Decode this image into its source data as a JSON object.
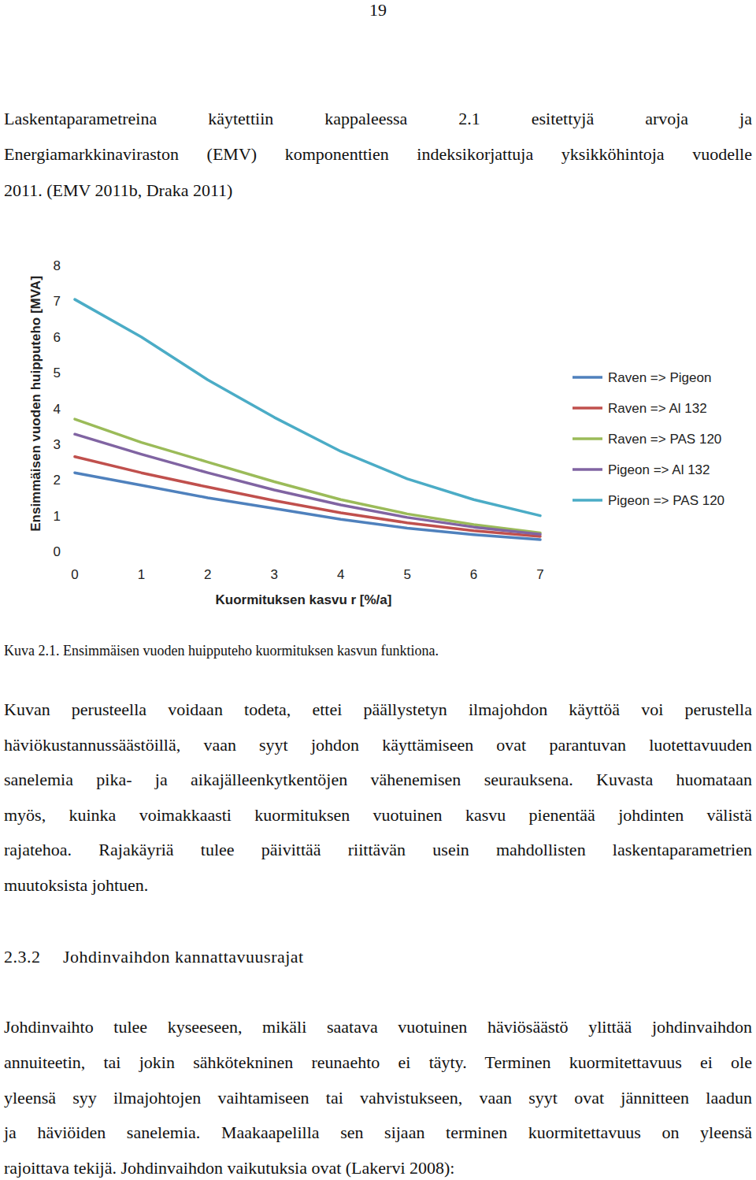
{
  "page_number": 19,
  "intro": [
    "Laskentaparametreina käytettiin kappaleessa 2.1 esitettyjä arvoja ja",
    "Energiamarkkinaviraston (EMV) komponenttien indeksikorjattuja yksikköhintoja vuodelle",
    "2011. (EMV 2011b, Draka 2011)"
  ],
  "chart_data": {
    "type": "line",
    "xlabel": "Kuormituksen kasvu r [%/a]",
    "ylabel": "Ensimmäisen vuoden huipputeho [MVA]",
    "x": [
      0,
      1,
      2,
      3,
      4,
      5,
      6,
      7
    ],
    "xlim": [
      0,
      7
    ],
    "xticks": [
      0,
      1,
      2,
      3,
      4,
      5,
      6,
      7
    ],
    "ylim": [
      0,
      8
    ],
    "yticks": [
      0,
      1,
      2,
      3,
      4,
      5,
      6,
      7,
      8
    ],
    "grid": false,
    "legend": "right",
    "series": [
      {
        "name": "Raven => Pigeon",
        "color": "#4f81bd",
        "values": [
          2.2,
          1.85,
          1.5,
          1.2,
          0.9,
          0.65,
          0.47,
          0.33
        ]
      },
      {
        "name": "Raven => Al 132",
        "color": "#c0504d",
        "values": [
          2.65,
          2.2,
          1.8,
          1.42,
          1.08,
          0.8,
          0.58,
          0.42
        ]
      },
      {
        "name": "Raven => PAS 120",
        "color": "#9bbb59",
        "values": [
          3.7,
          3.05,
          2.5,
          1.95,
          1.45,
          1.05,
          0.75,
          0.52
        ]
      },
      {
        "name": "Pigeon => Al 132",
        "color": "#8064a2",
        "values": [
          3.28,
          2.72,
          2.2,
          1.72,
          1.3,
          0.95,
          0.68,
          0.48
        ]
      },
      {
        "name": "Pigeon => PAS 120",
        "color": "#4bacc6",
        "values": [
          7.05,
          6.0,
          4.8,
          3.75,
          2.8,
          2.03,
          1.45,
          1.0
        ]
      }
    ]
  },
  "caption": "Kuva 2.1. Ensimmäisen vuoden huipputeho kuormituksen kasvun funktiona.",
  "discussion": [
    "Kuvan perusteella voidaan todeta, ettei päällystetyn ilmajohdon käyttöä voi perustella",
    "häviökustannussäästöillä, vaan syyt johdon käyttämiseen ovat parantuvan luotettavuuden",
    "sanelemia pika- ja aikajälleenkytkentöjen vähenemisen seurauksena. Kuvasta huomataan",
    "myös, kuinka voimakkaasti kuormituksen vuotuinen kasvu pienentää johdinten välistä",
    "rajatehoa. Rajakäyriä tulee päivittää riittävän usein mahdollisten laskentaparametrien",
    "muutoksista johtuen."
  ],
  "section": {
    "number": "2.3.2",
    "title": "Johdinvaihdon kannattavuusrajat"
  },
  "section_text": [
    "Johdinvaihto tulee kyseeseen, mikäli saatava vuotuinen häviösäästö ylittää johdinvaihdon",
    "annuiteetin, tai jokin sähkötekninen reunaehto ei täyty. Terminen kuormitettavuus ei ole",
    "yleensä syy ilmajohtojen vaihtamiseen tai vahvistukseen, vaan syyt ovat jännitteen laadun",
    "ja häviöiden sanelemia. Maakaapelilla sen sijaan terminen kuormitettavuus on yleensä",
    "rajoittava tekijä. Johdinvaihdon vaikutuksia ovat (Lakervi 2008):"
  ]
}
